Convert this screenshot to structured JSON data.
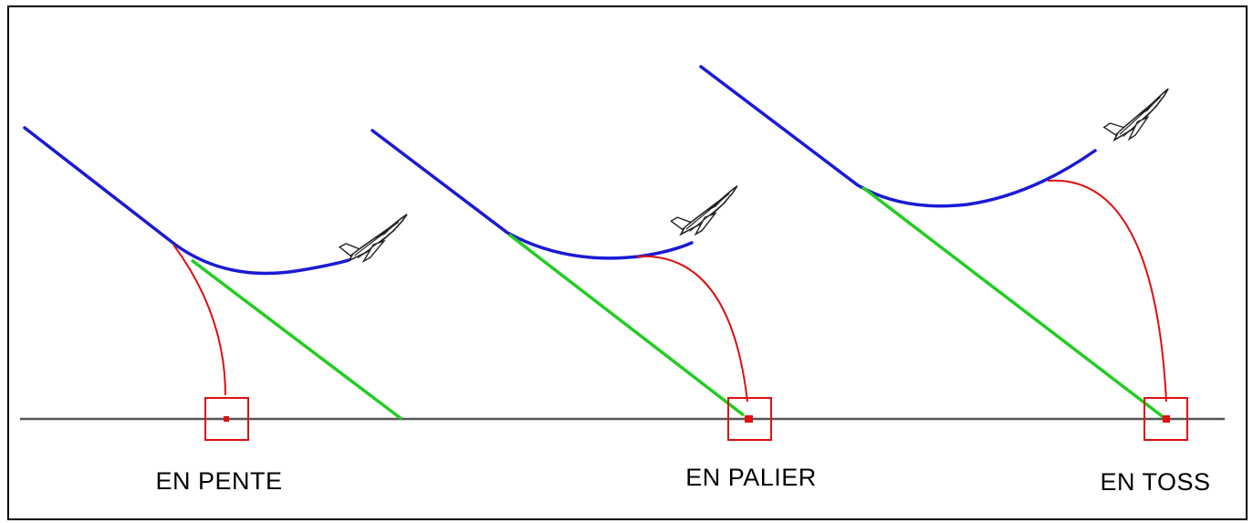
{
  "colors": {
    "frame": "#000000",
    "ground": "#555555",
    "flight_path": "#1a1ad6",
    "bomb_trajectory": "#e01010",
    "aim_line": "#22cc22",
    "target": "#e01010",
    "aircraft": "#222222"
  },
  "panels": [
    {
      "id": "pente",
      "label": "EN PENTE",
      "icon": "fighter-jet-icon"
    },
    {
      "id": "palier",
      "label": "EN PALIER",
      "icon": "fighter-jet-icon"
    },
    {
      "id": "toss",
      "label": "EN TOSS",
      "icon": "fighter-jet-icon"
    }
  ]
}
